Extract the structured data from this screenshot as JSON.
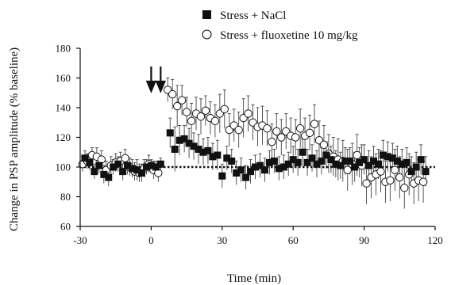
{
  "chart_data": {
    "type": "scatter",
    "title": "",
    "xlabel": "Time (min)",
    "ylabel": "Change in PSP amplitude (% baseline)",
    "xlim": [
      -30,
      120
    ],
    "ylim": [
      60,
      180
    ],
    "xticks": [
      -30,
      0,
      30,
      60,
      90,
      120
    ],
    "yticks": [
      60,
      80,
      100,
      120,
      140,
      160,
      180
    ],
    "grid": false,
    "legend_position": "top-right",
    "baseline": 100,
    "arrows_at_x": [
      0,
      4
    ],
    "series": [
      {
        "name": "Stress + NaCl",
        "marker": "filled-square",
        "color": "#111111",
        "x": [
          -28,
          -26,
          -24,
          -22,
          -20,
          -18,
          -16,
          -14,
          -12,
          -10,
          -8,
          -6,
          -4,
          -2,
          0,
          2,
          4,
          8,
          10,
          12,
          14,
          16,
          18,
          20,
          22,
          24,
          26,
          28,
          30,
          32,
          34,
          36,
          38,
          40,
          42,
          44,
          46,
          48,
          50,
          52,
          54,
          56,
          58,
          60,
          62,
          64,
          66,
          68,
          70,
          72,
          74,
          76,
          78,
          80,
          82,
          84,
          86,
          88,
          90,
          92,
          94,
          96,
          98,
          100,
          102,
          104,
          106,
          108,
          110,
          112,
          114,
          116
        ],
        "y": [
          106,
          103,
          97,
          101,
          95,
          93,
          100,
          102,
          97,
          101,
          99,
          98,
          96,
          100,
          101,
          100,
          102,
          123,
          112,
          118,
          119,
          116,
          114,
          112,
          110,
          111,
          107,
          108,
          94,
          106,
          104,
          96,
          98,
          93,
          97,
          100,
          101,
          98,
          103,
          104,
          99,
          100,
          102,
          105,
          103,
          110,
          103,
          106,
          102,
          104,
          108,
          105,
          102,
          101,
          104,
          104,
          100,
          103,
          105,
          101,
          104,
          102,
          108,
          107,
          106,
          104,
          102,
          103,
          97,
          100,
          105,
          97
        ],
        "err": [
          5,
          5,
          5,
          5,
          6,
          6,
          5,
          5,
          6,
          6,
          6,
          7,
          6,
          5,
          4,
          4,
          4,
          10,
          15,
          10,
          9,
          10,
          9,
          10,
          9,
          9,
          9,
          10,
          8,
          8,
          8,
          8,
          8,
          8,
          8,
          8,
          8,
          8,
          8,
          8,
          8,
          8,
          8,
          9,
          9,
          9,
          9,
          9,
          9,
          9,
          9,
          9,
          9,
          9,
          9,
          9,
          10,
          10,
          10,
          10,
          10,
          10,
          10,
          10,
          10,
          10,
          10,
          10,
          10,
          10,
          10,
          10
        ]
      },
      {
        "name": "Stress + fluoxetine 10 mg/kg",
        "marker": "open-circle",
        "color": "#111111",
        "x": [
          -29,
          -27,
          -25,
          -23,
          -21,
          -19,
          -17,
          -15,
          -13,
          -11,
          -9,
          -7,
          -5,
          -3,
          -1,
          1,
          3,
          7,
          9,
          11,
          13,
          15,
          17,
          19,
          21,
          23,
          25,
          27,
          29,
          31,
          33,
          35,
          37,
          39,
          41,
          43,
          45,
          47,
          49,
          51,
          53,
          55,
          57,
          59,
          61,
          63,
          65,
          67,
          69,
          71,
          73,
          75,
          77,
          79,
          81,
          83,
          85,
          87,
          89,
          91,
          93,
          95,
          97,
          99,
          101,
          103,
          105,
          107,
          109,
          111,
          113,
          115
        ],
        "y": [
          102,
          104,
          108,
          107,
          105,
          98,
          101,
          103,
          104,
          106,
          100,
          97,
          96,
          99,
          102,
          98,
          96,
          152,
          149,
          141,
          145,
          137,
          131,
          136,
          134,
          138,
          133,
          131,
          136,
          139,
          125,
          128,
          125,
          133,
          136,
          130,
          127,
          128,
          126,
          117,
          124,
          120,
          124,
          121,
          120,
          126,
          121,
          123,
          129,
          118,
          115,
          109,
          107,
          105,
          104,
          98,
          102,
          108,
          101,
          89,
          93,
          95,
          97,
          90,
          91,
          98,
          93,
          86,
          95,
          89,
          91,
          90
        ],
        "err": [
          5,
          5,
          5,
          6,
          6,
          6,
          6,
          6,
          6,
          6,
          6,
          6,
          6,
          6,
          6,
          6,
          6,
          8,
          10,
          14,
          10,
          10,
          12,
          11,
          12,
          10,
          11,
          11,
          13,
          13,
          11,
          11,
          12,
          13,
          12,
          12,
          13,
          13,
          12,
          12,
          12,
          12,
          12,
          12,
          12,
          13,
          12,
          12,
          13,
          13,
          13,
          13,
          13,
          14,
          14,
          14,
          14,
          14,
          14,
          14,
          14,
          14,
          14,
          14,
          14,
          14,
          14,
          14,
          14,
          14,
          14,
          14
        ]
      }
    ]
  }
}
